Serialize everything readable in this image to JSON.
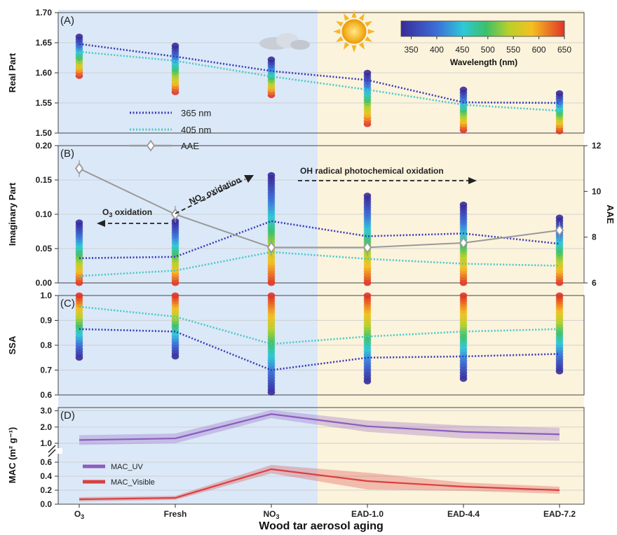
{
  "figure": {
    "xlabel": "Wood tar aerosol aging",
    "categories": [
      "O",
      "Fresh",
      "NO",
      "EAD-1.0",
      "EAD-4.4",
      "EAD-7.2"
    ],
    "category_subscripts": [
      "3",
      "",
      "3",
      "",
      "",
      ""
    ],
    "background_colors": {
      "night": "#dbe8f7",
      "day": "#fbf3dc"
    },
    "colorbar": {
      "label": "Wavelength (nm)",
      "ticks": [
        "350",
        "400",
        "450",
        "500",
        "550",
        "600",
        "650"
      ],
      "range": [
        330,
        650
      ]
    }
  },
  "chart_data": [
    {
      "panel": "(A)",
      "type": "line",
      "ylabel": "Real Part",
      "ylim": [
        1.5,
        1.7
      ],
      "yticks": [
        "1.50",
        "1.55",
        "1.60",
        "1.65",
        "1.70"
      ],
      "series": [
        {
          "name": "365 nm",
          "color": "#3a3ab8",
          "values": [
            1.648,
            1.627,
            1.603,
            1.588,
            1.551,
            1.55
          ]
        },
        {
          "name": "405 nm",
          "color": "#48c8c8",
          "values": [
            1.635,
            1.62,
            1.594,
            1.572,
            1.547,
            1.537
          ]
        }
      ],
      "wavelength_spread": {
        "top": [
          1.66,
          1.645,
          1.622,
          1.6,
          1.572,
          1.566
        ],
        "bottom": [
          1.595,
          1.568,
          1.563,
          1.515,
          1.505,
          1.503
        ]
      }
    },
    {
      "panel": "(B)",
      "type": "line",
      "ylabel": "Imaginary Part",
      "ylabel_right": "AAE",
      "ylim": [
        0,
        0.2
      ],
      "yticks": [
        "0.00",
        "0.05",
        "0.10",
        "0.15",
        "0.20"
      ],
      "ylim_right": [
        6,
        12
      ],
      "yticks_right": [
        "6",
        "8",
        "10",
        "12"
      ],
      "series": [
        {
          "name": "365 nm",
          "color": "#3a3ab8",
          "values": [
            0.036,
            0.038,
            0.09,
            0.068,
            0.072,
            0.057
          ]
        },
        {
          "name": "405 nm",
          "color": "#48c8c8",
          "values": [
            0.01,
            0.018,
            0.045,
            0.035,
            0.028,
            0.025
          ]
        },
        {
          "name": "AAE",
          "color": "#999999",
          "axis": "right",
          "values": [
            11.0,
            9.0,
            7.55,
            7.55,
            7.75,
            8.3
          ]
        }
      ],
      "wavelength_spread": {
        "top": [
          0.088,
          0.09,
          0.157,
          0.127,
          0.114,
          0.095
        ],
        "bottom": [
          0.0,
          0.0,
          0.0,
          0.0,
          0.0,
          0.0
        ]
      },
      "annotations": [
        {
          "text_before": "O",
          "sub": "3",
          "text_after": " oxidation"
        },
        {
          "text_before": "NO",
          "sub": "3",
          "text_after": " oxidation"
        },
        {
          "text_before": "OH radical photochemical oxidation",
          "sub": "",
          "text_after": ""
        }
      ]
    },
    {
      "panel": "(C)",
      "type": "line",
      "ylabel": "SSA",
      "ylim": [
        0.6,
        1.0
      ],
      "yticks": [
        "0.6",
        "0.7",
        "0.8",
        "0.9",
        "1.0"
      ],
      "series": [
        {
          "name": "365 nm",
          "color": "#3a3ab8",
          "values": [
            0.865,
            0.855,
            0.7,
            0.75,
            0.755,
            0.765
          ]
        },
        {
          "name": "405 nm",
          "color": "#48c8c8",
          "values": [
            0.955,
            0.915,
            0.805,
            0.835,
            0.855,
            0.865
          ]
        }
      ],
      "wavelength_spread": {
        "top": [
          1.0,
          1.0,
          1.0,
          1.0,
          1.0,
          1.0
        ],
        "bottom": [
          0.75,
          0.755,
          0.61,
          0.655,
          0.665,
          0.695
        ]
      }
    },
    {
      "panel": "(D)",
      "type": "area",
      "ylabel": "MAC (m² g⁻¹)",
      "yticks_top": [
        "1.0",
        "2.0",
        "3.0"
      ],
      "yticks_bottom": [
        "0.0",
        "0.2",
        "0.4",
        "0.6"
      ],
      "series": [
        {
          "name": "MAC_UV",
          "color": "#8c5cc0",
          "values": [
            1.2,
            1.3,
            2.8,
            2.05,
            1.7,
            1.55
          ],
          "band": [
            0.3,
            0.3,
            0.25,
            0.35,
            0.4,
            0.4
          ]
        },
        {
          "name": "MAC_Visible",
          "color": "#d94040",
          "values": [
            0.07,
            0.09,
            0.5,
            0.33,
            0.25,
            0.2
          ],
          "band": [
            0.03,
            0.03,
            0.06,
            0.12,
            0.06,
            0.05
          ]
        }
      ]
    }
  ]
}
